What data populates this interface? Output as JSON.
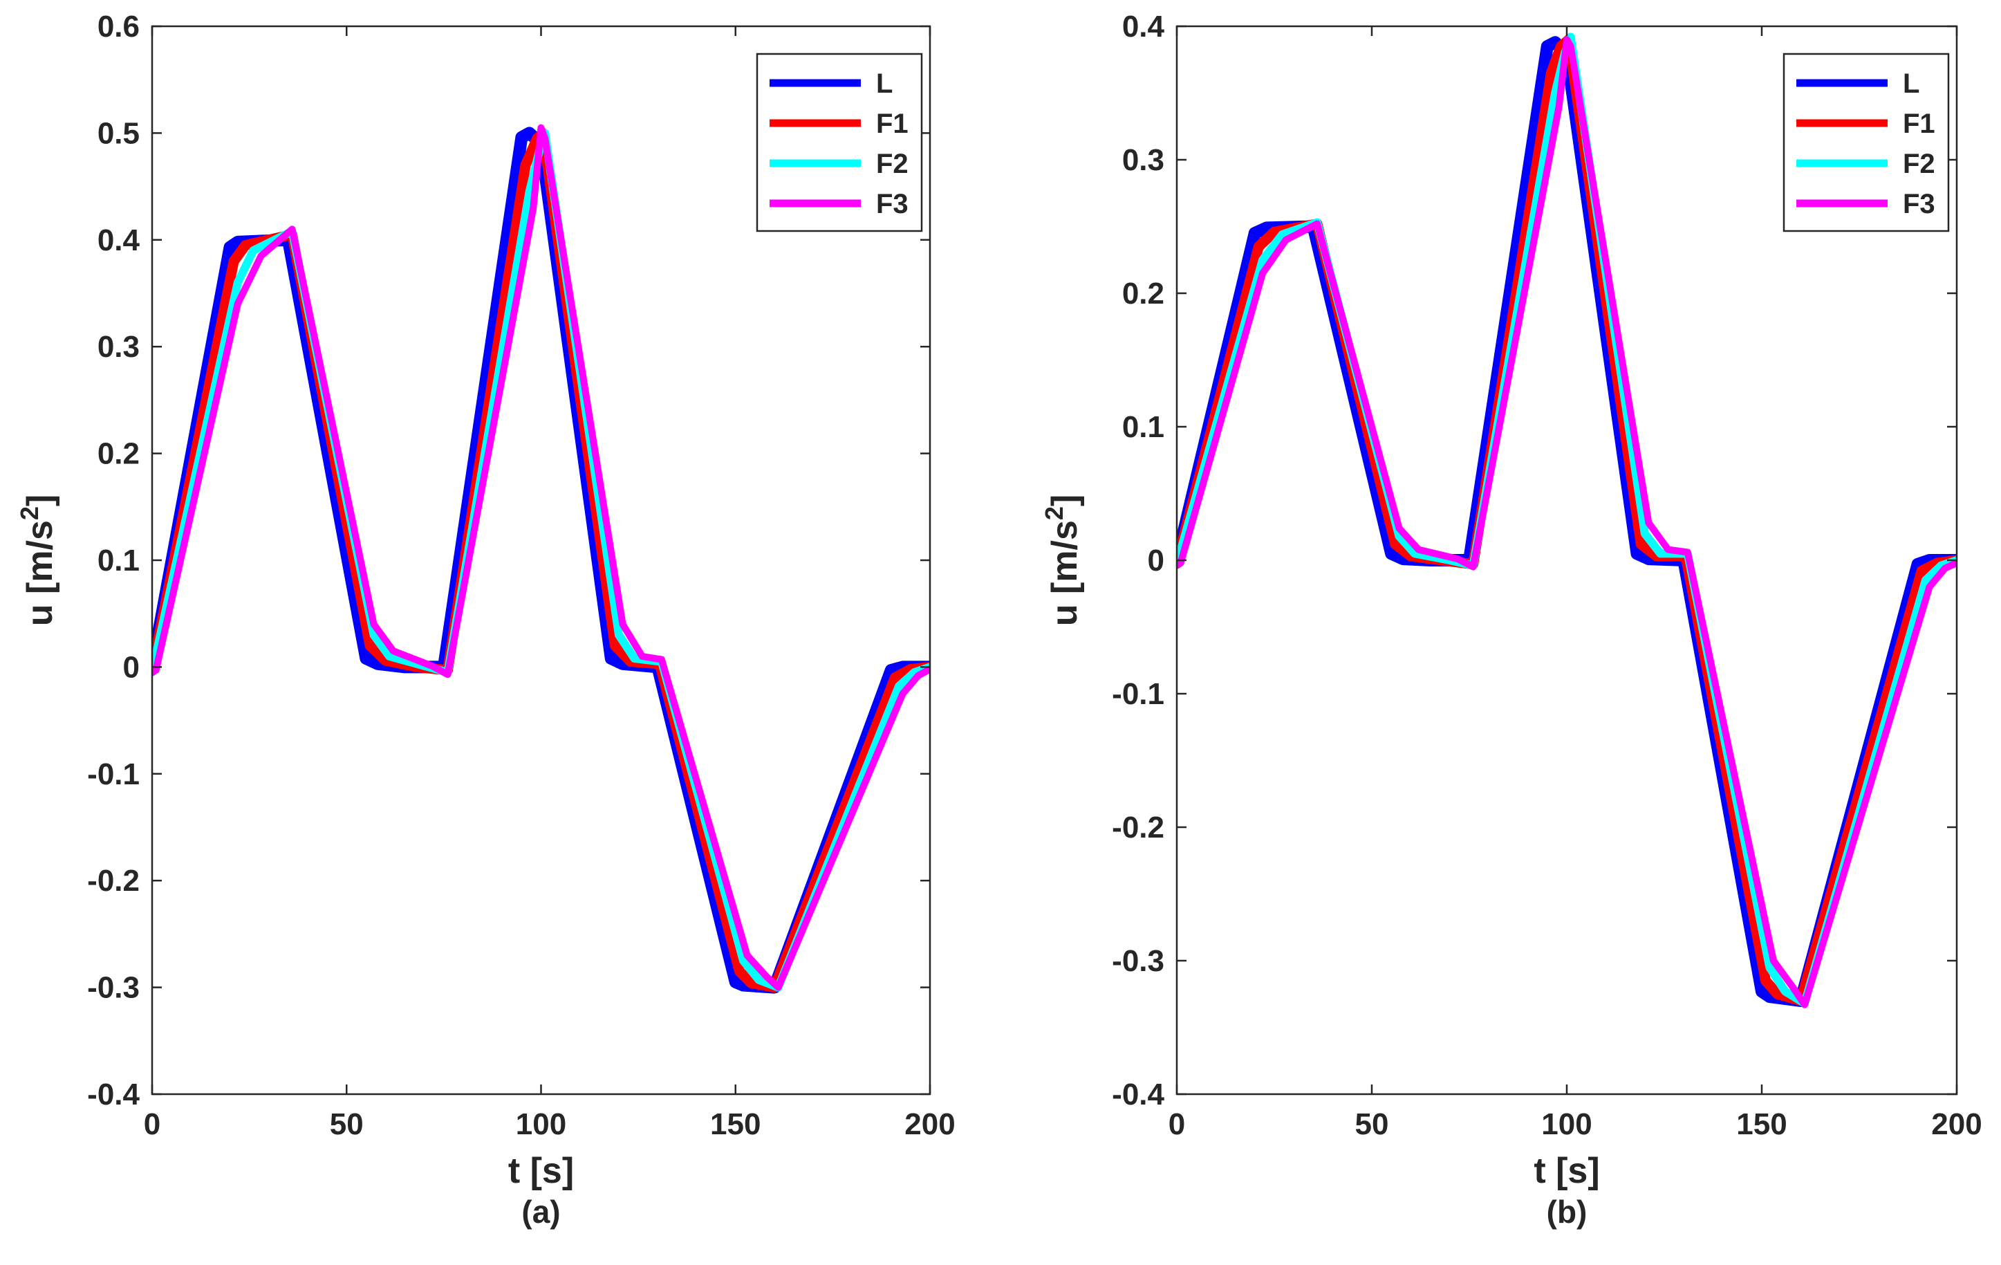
{
  "chart_data": [
    {
      "type": "line",
      "panel_label": "(a)",
      "xlabel": "t [s]",
      "ylabel": "u [m/s²]",
      "ylabel_base": "u [m/s",
      "ylabel_sup": "2",
      "ylabel_close": "]",
      "xlim": [
        0,
        200
      ],
      "ylim": [
        -0.4,
        0.6
      ],
      "xticks": [
        0,
        50,
        100,
        150,
        200
      ],
      "xtick_labels": [
        "0",
        "50",
        "100",
        "150",
        "200"
      ],
      "yticks": [
        -0.4,
        -0.3,
        -0.2,
        -0.1,
        0,
        0.1,
        0.2,
        0.3,
        0.4,
        0.5,
        0.6
      ],
      "ytick_labels": [
        "-0.4",
        "-0.3",
        "-0.2",
        "-0.1",
        "0",
        "0.1",
        "0.2",
        "0.3",
        "0.4",
        "0.5",
        "0.6"
      ],
      "grid": false,
      "legend_position": "top-right",
      "series": [
        {
          "name": "L",
          "color": "#0000ff",
          "x": [
            0,
            20,
            22,
            35,
            55,
            58,
            65,
            75,
            95,
            97,
            100,
            118,
            121,
            130,
            150,
            152,
            160,
            190,
            193,
            200
          ],
          "y": [
            0,
            0.393,
            0.398,
            0.4,
            0.008,
            0.003,
            0,
            0,
            0.496,
            0.5,
            0.49,
            0.008,
            0.003,
            0,
            -0.295,
            -0.298,
            -0.3,
            -0.003,
            0,
            0
          ]
        },
        {
          "name": "F1",
          "color": "#ff0000",
          "x": [
            0,
            21,
            24,
            36,
            56,
            60,
            68,
            76,
            96,
            99,
            100.5,
            119,
            123,
            130.5,
            151,
            154,
            160,
            191,
            195,
            200
          ],
          "y": [
            -0.003,
            0.38,
            0.395,
            0.405,
            0.02,
            0.006,
            0,
            -0.003,
            0.47,
            0.495,
            0.5,
            0.02,
            0.005,
            0.003,
            -0.285,
            -0.296,
            -0.3,
            -0.01,
            -0.002,
            0
          ]
        },
        {
          "name": "F2",
          "color": "#00ffff",
          "x": [
            0,
            22,
            26,
            36,
            57,
            61,
            70,
            76,
            97,
            100,
            101,
            120,
            124,
            131,
            152,
            156,
            161,
            192,
            196,
            200
          ],
          "y": [
            -0.005,
            0.36,
            0.39,
            0.408,
            0.03,
            0.01,
            0.001,
            -0.005,
            0.445,
            0.49,
            0.5,
            0.03,
            0.008,
            0.005,
            -0.275,
            -0.293,
            -0.3,
            -0.018,
            -0.005,
            0
          ]
        },
        {
          "name": "F3",
          "color": "#ff00ff",
          "x": [
            0,
            1,
            22,
            28,
            36,
            57,
            62,
            72,
            76,
            98,
            100,
            101,
            121,
            126,
            131,
            153,
            158,
            161,
            193,
            197,
            200
          ],
          "y": [
            -0.005,
            -0.003,
            0.34,
            0.385,
            0.41,
            0.04,
            0.015,
            0.001,
            -0.007,
            0.43,
            0.505,
            0.495,
            0.04,
            0.01,
            0.007,
            -0.27,
            -0.29,
            -0.3,
            -0.025,
            -0.008,
            -0.002
          ]
        }
      ]
    },
    {
      "type": "line",
      "panel_label": "(b)",
      "xlabel": "t [s]",
      "ylabel": "u [m/s²]",
      "ylabel_base": "u [m/s",
      "ylabel_sup": "2",
      "ylabel_close": "]",
      "xlim": [
        0,
        200
      ],
      "ylim": [
        -0.4,
        0.4
      ],
      "xticks": [
        0,
        50,
        100,
        150,
        200
      ],
      "xtick_labels": [
        "0",
        "50",
        "100",
        "150",
        "200"
      ],
      "yticks": [
        -0.4,
        -0.3,
        -0.2,
        -0.1,
        0,
        0.1,
        0.2,
        0.3,
        0.4
      ],
      "ytick_labels": [
        "-0.4",
        "-0.3",
        "-0.2",
        "-0.1",
        "0",
        "0.1",
        "0.2",
        "0.3",
        "0.4"
      ],
      "grid": false,
      "legend_position": "top-right",
      "series": [
        {
          "name": "L",
          "color": "#0000ff",
          "x": [
            0,
            20,
            23,
            35,
            55,
            58,
            65,
            75,
            95,
            97,
            100,
            118,
            121,
            130,
            150,
            152,
            160,
            190,
            193,
            200
          ],
          "y": [
            0,
            0.245,
            0.249,
            0.25,
            0.005,
            0.001,
            0,
            0,
            0.385,
            0.388,
            0.38,
            0.005,
            0.001,
            0,
            -0.323,
            -0.327,
            -0.33,
            -0.003,
            0,
            0
          ]
        },
        {
          "name": "F1",
          "color": "#ff0000",
          "x": [
            0,
            21,
            25,
            36,
            56,
            60,
            68,
            76,
            96,
            98.5,
            100.5,
            119,
            123,
            130.5,
            151,
            154,
            160,
            191,
            195,
            200
          ],
          "y": [
            -0.002,
            0.235,
            0.246,
            0.252,
            0.012,
            0.003,
            0,
            -0.003,
            0.365,
            0.385,
            0.39,
            0.012,
            0.003,
            0.003,
            -0.315,
            -0.325,
            -0.33,
            -0.008,
            -0.002,
            0
          ]
        },
        {
          "name": "F2",
          "color": "#00ffff",
          "x": [
            0,
            22,
            27,
            36,
            57,
            61,
            70,
            76,
            97,
            99.5,
            101,
            120,
            124,
            131,
            152,
            156,
            161,
            192,
            196,
            200
          ],
          "y": [
            -0.003,
            0.225,
            0.244,
            0.253,
            0.018,
            0.005,
            0,
            -0.004,
            0.35,
            0.38,
            0.392,
            0.02,
            0.005,
            0.005,
            -0.305,
            -0.323,
            -0.332,
            -0.015,
            -0.004,
            0
          ]
        },
        {
          "name": "F3",
          "color": "#ff00ff",
          "x": [
            0,
            1,
            22,
            28,
            36,
            57,
            62,
            72,
            76,
            98,
            100,
            101,
            121,
            126,
            131,
            153,
            158,
            161,
            193,
            197,
            200
          ],
          "y": [
            -0.004,
            -0.002,
            0.215,
            0.24,
            0.252,
            0.024,
            0.008,
            0.001,
            -0.005,
            0.34,
            0.39,
            0.385,
            0.028,
            0.008,
            0.006,
            -0.3,
            -0.32,
            -0.333,
            -0.02,
            -0.006,
            -0.002
          ]
        }
      ]
    }
  ]
}
